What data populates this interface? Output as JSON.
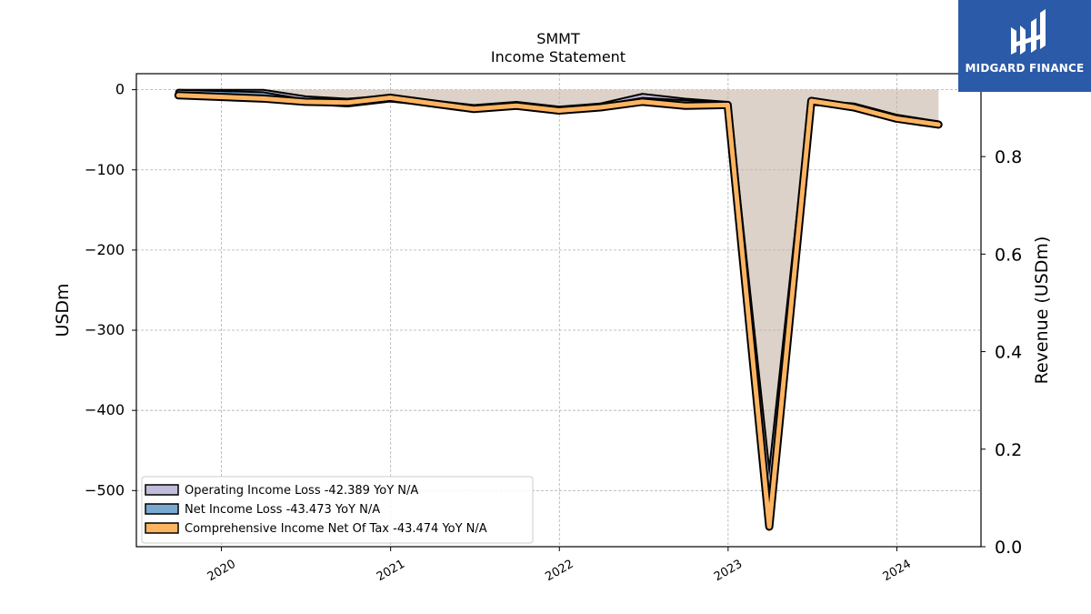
{
  "logo": {
    "text": "MIDGARD FINANCE",
    "color": "#2b5aa8"
  },
  "chart_data": {
    "type": "line",
    "title": "SMMT",
    "subtitle": "Income Statement",
    "ylabel": "USDm",
    "ylabel_right": "Revenue (USDm)",
    "ylim": [
      -570,
      20
    ],
    "ylim_right": [
      0.0,
      0.97
    ],
    "yticks": [
      0,
      -100,
      -200,
      -300,
      -400,
      -500
    ],
    "yticks_right": [
      0.0,
      0.2,
      0.4,
      0.6,
      0.8
    ],
    "ytick_labels": [
      "0",
      "−100",
      "−200",
      "−300",
      "−400",
      "−500"
    ],
    "ytick_labels_right": [
      "0.0",
      "0.2",
      "0.4",
      "0.6",
      "0.8"
    ],
    "xlim": [
      "2019-07-01",
      "2024-07-01"
    ],
    "xticks": [
      "2020-01-01",
      "2021-01-01",
      "2022-01-01",
      "2023-01-01",
      "2024-01-01"
    ],
    "xtick_labels": [
      "2020",
      "2021",
      "2022",
      "2023",
      "2024"
    ],
    "x": [
      "2019-09-30",
      "2020-03-31",
      "2020-06-30",
      "2020-09-30",
      "2020-12-31",
      "2021-03-31",
      "2021-06-30",
      "2021-09-30",
      "2021-12-31",
      "2022-03-31",
      "2022-06-30",
      "2022-09-30",
      "2022-12-31",
      "2023-03-31",
      "2023-06-30",
      "2023-09-30",
      "2023-12-31",
      "2024-03-31"
    ],
    "grid": true,
    "legend_position": "lower-left",
    "series": [
      {
        "name": "Operating Income Loss  -42.389 YoY N/A",
        "color": "#c0bcd9",
        "values": [
          -3,
          -3,
          -11,
          -14,
          -10,
          -16,
          -22,
          -18,
          -24,
          -20,
          -8,
          -14,
          -18,
          -500,
          -16,
          -20,
          -34,
          -42.389
        ]
      },
      {
        "name": "Net Income Loss  -43.473 YoY N/A",
        "color": "#7aa9cf",
        "values": [
          -3,
          -6,
          -15,
          -18,
          -12,
          -17,
          -24,
          -20,
          -26,
          -22,
          -13,
          -16,
          -19,
          -545,
          -14,
          -22,
          -36,
          -43.473
        ]
      },
      {
        "name": "Comprehensive Income Net Of Tax  -43.474 YoY N/A",
        "color": "#fdb462",
        "values": [
          -7,
          -11,
          -15,
          -16,
          -10,
          -17,
          -24,
          -20,
          -26,
          -22,
          -15,
          -20,
          -19,
          -545,
          -14,
          -22,
          -36,
          -43.474
        ]
      }
    ]
  }
}
